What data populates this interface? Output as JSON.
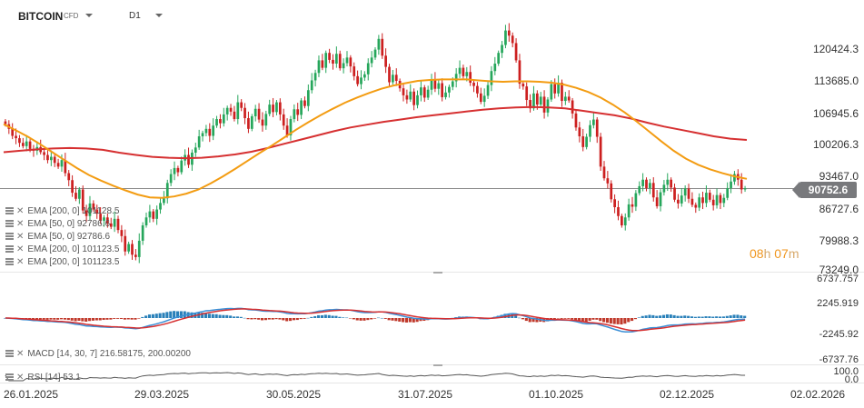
{
  "header": {
    "symbol": "BITCOIN",
    "type": "CFD",
    "timeframe": "D1",
    "icons": [
      "chevron-down-icon",
      "chevron-down-icon"
    ]
  },
  "price_axis": {
    "labels": [
      "120424.3",
      "113685.0",
      "106945.6",
      "100206.3",
      "93467.0",
      "86727.6",
      "79988.3",
      "73249.0"
    ],
    "current_price": "90752.6"
  },
  "countdown": {
    "hours": "08",
    "h": "h",
    "minutes": "07",
    "m": "m"
  },
  "legend": [
    {
      "text": "EMA [200, 0]  101128.5",
      "icon": "list-icon"
    },
    {
      "text": "EMA [50, 0]  92786.6",
      "icon": "list-icon"
    },
    {
      "text": "EMA [50, 0]  92786.6",
      "icon": "list-icon"
    },
    {
      "text": "EMA [200, 0]  101123.5",
      "icon": "list-icon"
    },
    {
      "text": "EMA [200, 0]  101123.5",
      "icon": "list-icon"
    }
  ],
  "macd": {
    "label": "MACD [14, 30, 7]  216.58175,  200.00200",
    "axis_labels": [
      "6737.757",
      "2245.919",
      "-2245.92",
      "-6737.76"
    ]
  },
  "rsi": {
    "label": "RSI [14]  53.1",
    "axis_labels": [
      "100.0",
      "0.0"
    ]
  },
  "x_axis": {
    "labels": [
      "26.01.2025",
      "29.03.2025",
      "30.05.2025",
      "31.07.2025",
      "01.10.2025",
      "02.12.2025",
      "02.02.2026"
    ]
  },
  "colors": {
    "up": "#26a65b",
    "down": "#cc1f1f",
    "ema50": "#f39c12",
    "ema200": "#d63031",
    "macd_line": "#3a8fd6",
    "signal_line": "#d63031",
    "hist_pos": "#2980b9",
    "hist_neg": "#c0392b",
    "rsi_line": "#555555"
  },
  "chart_data": {
    "type": "candlestick",
    "y_range": [
      73249.0,
      120424.3
    ],
    "closes": [
      104500,
      103500,
      102000,
      101500,
      100500,
      99800,
      100800,
      99200,
      98800,
      99600,
      98500,
      97900,
      96800,
      97500,
      96200,
      95400,
      96800,
      94000,
      92500,
      89800,
      88500,
      90500,
      86000,
      84800,
      87500,
      86200,
      85300,
      83800,
      84500,
      83200,
      82500,
      84200,
      81800,
      80500,
      77200,
      78800,
      76500,
      76000,
      79500,
      82800,
      84500,
      85800,
      84200,
      86200,
      87600,
      88600,
      91900,
      93800,
      95100,
      94200,
      96700,
      97900,
      95800,
      98400,
      99500,
      101900,
      102600,
      103500,
      102000,
      104200,
      105600,
      104700,
      106600,
      108000,
      107200,
      105600,
      109200,
      108000,
      105800,
      103500,
      106200,
      107800,
      105500,
      104200,
      106700,
      108700,
      107100,
      109200,
      106600,
      104200,
      102100,
      105600,
      107700,
      106500,
      109600,
      108400,
      111800,
      113900,
      115500,
      118200,
      116600,
      119800,
      118300,
      117500,
      119600,
      116500,
      117600,
      118800,
      116900,
      114800,
      113100,
      114500,
      115200,
      117600,
      118800,
      120500,
      122800,
      119200,
      116800,
      113500,
      115100,
      113800,
      112200,
      110700,
      109800,
      111500,
      108600,
      110700,
      112400,
      110200,
      111900,
      114100,
      112100,
      113300,
      110300,
      111300,
      112500,
      113700,
      115300,
      116600,
      114800,
      115700,
      113400,
      112700,
      111100,
      109300,
      110600,
      112900,
      115900,
      117500,
      119800,
      121500,
      124600,
      123500,
      121900,
      118200,
      113200,
      112600,
      109700,
      107900,
      111100,
      108700,
      110400,
      107000,
      109800,
      113100,
      111100,
      113400,
      109500,
      110400,
      109600,
      106800,
      103800,
      101900,
      99600,
      101800,
      104300,
      105500,
      101800,
      95400,
      92900,
      91800,
      88400,
      86700,
      84800,
      82800,
      84500,
      87300,
      86800,
      89700,
      91200,
      92600,
      90800,
      91900,
      88800,
      86900,
      89900,
      91500,
      92600,
      90900,
      88300,
      87500,
      89200,
      90700,
      88500,
      87200,
      86600,
      88800,
      87600,
      89800,
      88300,
      87100,
      89300,
      87600,
      88700,
      90800,
      92200,
      93800,
      92600,
      90500,
      90752.6
    ],
    "ema50": [
      104500,
      103200,
      101800,
      100200,
      98500,
      96800,
      95100,
      93600,
      92400,
      91300,
      90300,
      89400,
      88800,
      88700,
      89000,
      89600,
      90500,
      91800,
      93300,
      94900,
      96600,
      98300,
      99900,
      101600,
      103300,
      104900,
      106400,
      107800,
      109100,
      110200,
      111200,
      112100,
      112800,
      113300,
      113800,
      114000,
      114100,
      114100,
      114100,
      113900,
      113700,
      113600,
      113700,
      113700,
      113600,
      113400,
      113000,
      112300,
      111400,
      110200,
      108700,
      107000,
      105000,
      102900,
      100800,
      98800,
      97100,
      95800,
      94800,
      94000,
      93300,
      92786.6
    ],
    "ema200": [
      98500,
      98800,
      99100,
      99300,
      99400,
      99300,
      99000,
      98400,
      97900,
      97500,
      97300,
      97200,
      97300,
      97600,
      98000,
      98600,
      99400,
      100300,
      101200,
      102100,
      103000,
      103800,
      104400,
      105000,
      105500,
      106000,
      106400,
      106800,
      107200,
      107600,
      107900,
      108100,
      108200,
      108100,
      107900,
      107400,
      106900,
      106400,
      105700,
      104800,
      104000,
      103300,
      102600,
      101900,
      101400,
      101128.5
    ],
    "macd_series": {
      "name": "MACD",
      "params": "[14, 30, 7]",
      "value": 216.58175,
      "signal": 200.002
    },
    "rsi_value": 53.1,
    "x_labels": [
      "26.01.2025",
      "29.03.2025",
      "30.05.2025",
      "31.07.2025",
      "01.10.2025",
      "02.12.2025",
      "02.02.2026"
    ]
  }
}
